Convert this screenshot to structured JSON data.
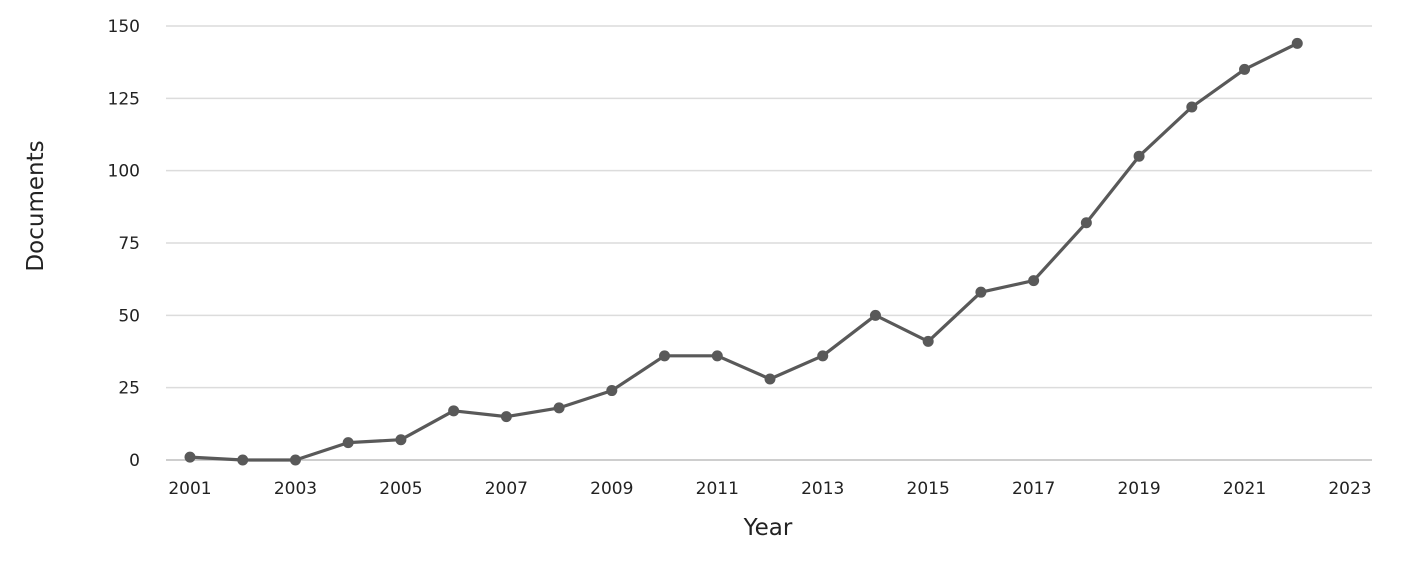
{
  "chart_data": {
    "type": "line",
    "title": "",
    "xlabel": "Year",
    "ylabel": "Documents",
    "xlim": [
      2001,
      2023
    ],
    "ylim": [
      0,
      150
    ],
    "x_ticks": [
      "2001",
      "2003",
      "2005",
      "2007",
      "2009",
      "2011",
      "2013",
      "2015",
      "2017",
      "2019",
      "2021",
      "2023"
    ],
    "y_ticks": [
      "0",
      "25",
      "50",
      "75",
      "100",
      "125",
      "150"
    ],
    "grid": true,
    "legend": "none",
    "series": [
      {
        "color": "#595959",
        "x": [
          2001,
          2002,
          2003,
          2004,
          2005,
          2006,
          2007,
          2008,
          2009,
          2010,
          2011,
          2012,
          2013,
          2014,
          2015,
          2016,
          2017,
          2018,
          2019,
          2020,
          2021,
          2022
        ],
        "values": [
          1,
          0,
          0,
          6,
          7,
          17,
          15,
          18,
          24,
          36,
          36,
          28,
          36,
          50,
          41,
          58,
          62,
          82,
          105,
          122,
          135,
          144
        ]
      }
    ]
  }
}
